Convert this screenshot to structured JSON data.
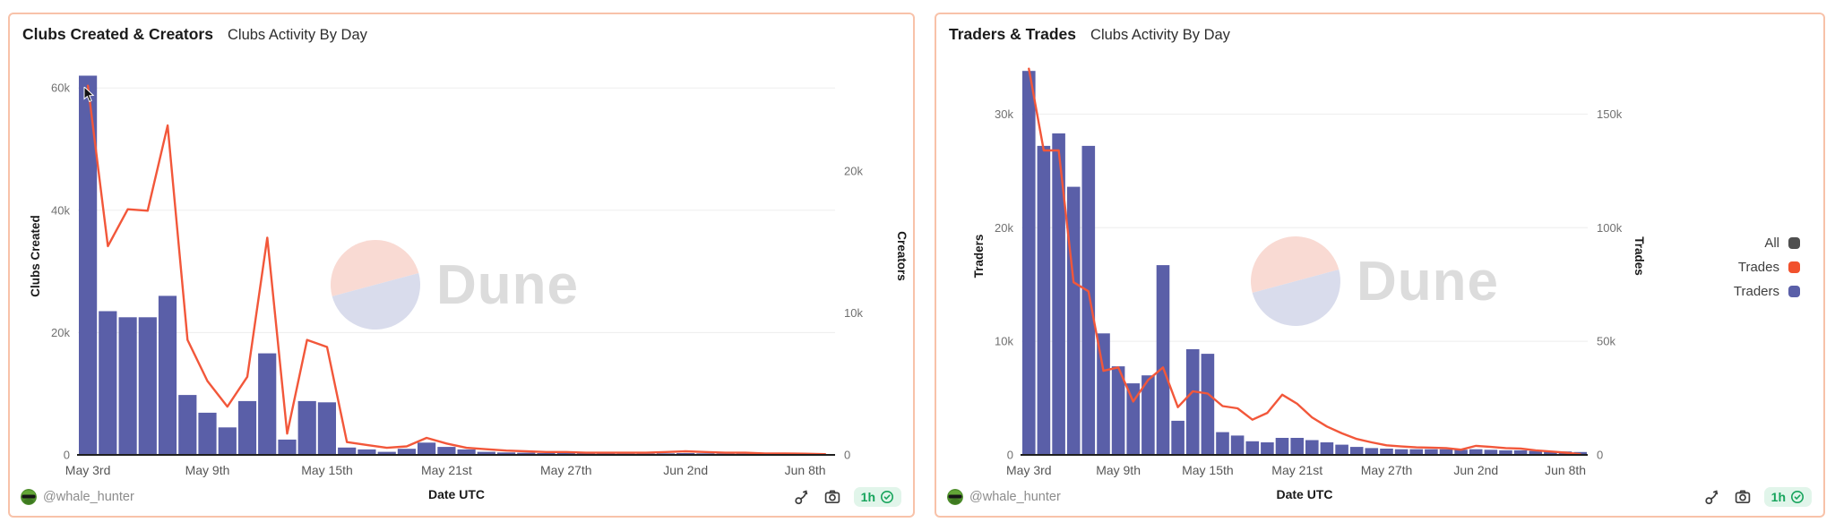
{
  "watermark_text": "Dune",
  "colors": {
    "bar_purple": "#5A5FA8",
    "line_orange": "#F2573A",
    "legend_all_gray": "#4F4F4F",
    "panel_border": "#F8C2A9",
    "badge_green": "#17A45C",
    "badge_bg": "#E1F5EA",
    "watermark_pink": "#F9DAD3",
    "watermark_lavender": "#D9DCEC",
    "grid_gray": "#EDEDED"
  },
  "panels": [
    {
      "title": "Clubs Created & Creators",
      "subtitle": "Clubs Activity By Day",
      "author": "@whale_hunter",
      "refresh_age": "1h",
      "chart_data": {
        "type": "bar+line",
        "x_label": "Date UTC",
        "dates": [
          "May 3",
          "May 4",
          "May 5",
          "May 6",
          "May 7",
          "May 8",
          "May 9",
          "May 10",
          "May 11",
          "May 12",
          "May 13",
          "May 14",
          "May 15",
          "May 16",
          "May 17",
          "May 18",
          "May 19",
          "May 20",
          "May 21",
          "May 22",
          "May 23",
          "May 24",
          "May 25",
          "May 26",
          "May 27",
          "May 28",
          "May 29",
          "May 30",
          "May 31",
          "Jun 1",
          "Jun 2",
          "Jun 3",
          "Jun 4",
          "Jun 5",
          "Jun 6",
          "Jun 7",
          "Jun 8",
          "Jun 9"
        ],
        "x_tick_indices": [
          0,
          6,
          12,
          18,
          24,
          30,
          36
        ],
        "x_tick_labels": [
          "May 3rd",
          "May 9th",
          "May 15th",
          "May 21st",
          "May 27th",
          "Jun 2nd",
          "Jun 8th"
        ],
        "left_axis": {
          "label": "Clubs Created",
          "max": 65000,
          "ticks": [
            0,
            20000,
            40000,
            60000
          ],
          "tick_labels": [
            "0",
            "20k",
            "40k",
            "60k"
          ]
        },
        "right_axis": {
          "label": "Creators",
          "max": 28000,
          "ticks": [
            0,
            10000,
            20000
          ],
          "tick_labels": [
            "0",
            "10k",
            "20k"
          ]
        },
        "series": [
          {
            "name": "Clubs Created",
            "type": "bar",
            "axis": "left",
            "color": "#5A5FA8",
            "values": [
              62000,
              23500,
              22500,
              22500,
              26000,
              9800,
              6900,
              4500,
              8800,
              16600,
              2500,
              8800,
              8600,
              1200,
              900,
              500,
              1000,
              2000,
              1300,
              900,
              500,
              400,
              350,
              300,
              300,
              250,
              250,
              200,
              200,
              250,
              300,
              250,
              200,
              200,
              150,
              150,
              100,
              100
            ]
          },
          {
            "name": "Creators",
            "type": "line",
            "axis": "right",
            "color": "#F2573A",
            "values": [
              26000,
              14700,
              17300,
              17200,
              23200,
              8100,
              5200,
              3400,
              5500,
              15300,
              1500,
              8100,
              7600,
              900,
              700,
              500,
              600,
              1200,
              800,
              500,
              400,
              300,
              250,
              200,
              200,
              150,
              150,
              150,
              150,
              200,
              250,
              200,
              150,
              150,
              100,
              100,
              80,
              50
            ]
          }
        ]
      }
    },
    {
      "title": "Traders & Trades",
      "subtitle": "Clubs Activity By Day",
      "author": "@whale_hunter",
      "refresh_age": "1h",
      "chart_data": {
        "type": "bar+line",
        "x_label": "Date UTC",
        "dates": [
          "May 3",
          "May 4",
          "May 5",
          "May 6",
          "May 7",
          "May 8",
          "May 9",
          "May 10",
          "May 11",
          "May 12",
          "May 13",
          "May 14",
          "May 15",
          "May 16",
          "May 17",
          "May 18",
          "May 19",
          "May 20",
          "May 21",
          "May 22",
          "May 23",
          "May 24",
          "May 25",
          "May 26",
          "May 27",
          "May 28",
          "May 29",
          "May 30",
          "May 31",
          "Jun 1",
          "Jun 2",
          "Jun 3",
          "Jun 4",
          "Jun 5",
          "Jun 6",
          "Jun 7",
          "Jun 8",
          "Jun 9"
        ],
        "x_tick_indices": [
          0,
          6,
          12,
          18,
          24,
          30,
          36
        ],
        "x_tick_labels": [
          "May 3rd",
          "May 9th",
          "May 15th",
          "May 21st",
          "May 27th",
          "Jun 2nd",
          "Jun 8th"
        ],
        "left_axis": {
          "label": "Traders",
          "max": 35000,
          "ticks": [
            0,
            10000,
            20000,
            30000
          ],
          "tick_labels": [
            "0",
            "10k",
            "20k",
            "30k"
          ]
        },
        "right_axis": {
          "label": "Trades",
          "max": 175000,
          "ticks": [
            0,
            50000,
            100000,
            150000
          ],
          "tick_labels": [
            "0",
            "50k",
            "100k",
            "150k"
          ]
        },
        "legend": [
          {
            "label": "All",
            "color": "#4F4F4F"
          },
          {
            "label": "Trades",
            "color": "#F1512D"
          },
          {
            "label": "Traders",
            "color": "#5A5FA8"
          }
        ],
        "series": [
          {
            "name": "Traders",
            "type": "bar",
            "axis": "left",
            "color": "#5A5FA8",
            "values": [
              33800,
              27200,
              28300,
              23600,
              27200,
              10700,
              7800,
              6300,
              7000,
              16700,
              3000,
              9300,
              8900,
              2000,
              1700,
              1200,
              1100,
              1500,
              1500,
              1300,
              1100,
              900,
              700,
              600,
              550,
              500,
              500,
              500,
              500,
              450,
              500,
              450,
              400,
              400,
              350,
              350,
              300,
              250
            ]
          },
          {
            "name": "Trades",
            "type": "line",
            "axis": "right",
            "color": "#F2573A",
            "values": [
              170000,
              134000,
              134000,
              76000,
              72000,
              37000,
              38500,
              23500,
              33000,
              38500,
              21000,
              28000,
              27000,
              21500,
              20500,
              15500,
              18500,
              26500,
              22500,
              16500,
              12500,
              9500,
              7000,
              5500,
              4200,
              3700,
              3300,
              3200,
              3000,
              2300,
              4000,
              3500,
              3000,
              2800,
              2000,
              1500,
              1000,
              300
            ]
          }
        ]
      }
    }
  ]
}
